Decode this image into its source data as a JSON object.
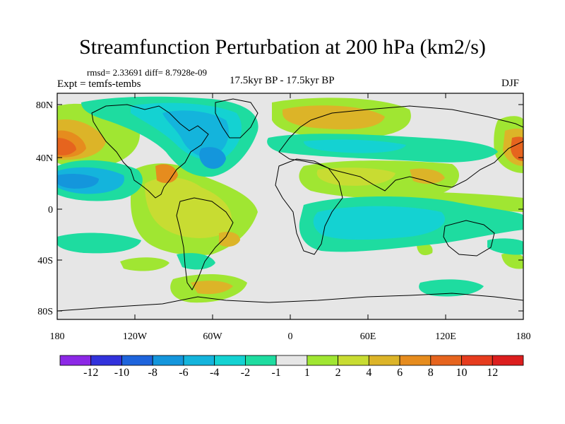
{
  "title": "Streamfunction Perturbation at 200 hPa (km2/s)",
  "stats": "rmsd= 2.33691  diff= 8.7928e-09",
  "expt": "Expt = temfs-tembs",
  "period": "17.5kyr BP - 17.5kyr BP",
  "season": "DJF",
  "map": {
    "lat_labels": [
      "80N",
      "40N",
      "0",
      "40S",
      "80S"
    ],
    "lon_labels": [
      "180",
      "120W",
      "60W",
      "0",
      "60E",
      "120E",
      "180"
    ]
  },
  "colorbar": {
    "labels": [
      "-12",
      "-10",
      "-8",
      "-6",
      "-4",
      "-2",
      "-1",
      "1",
      "2",
      "4",
      "6",
      "8",
      "10",
      "12"
    ],
    "colors": [
      "#8c28e6",
      "#3232dc",
      "#1e64dc",
      "#1496dc",
      "#14b4dc",
      "#14d2d2",
      "#1edca0",
      "#e6e6e6",
      "#a0e632",
      "#c8dc32",
      "#dcb428",
      "#e68c1e",
      "#e6641e",
      "#e63c1e",
      "#dc1e1e"
    ]
  }
}
